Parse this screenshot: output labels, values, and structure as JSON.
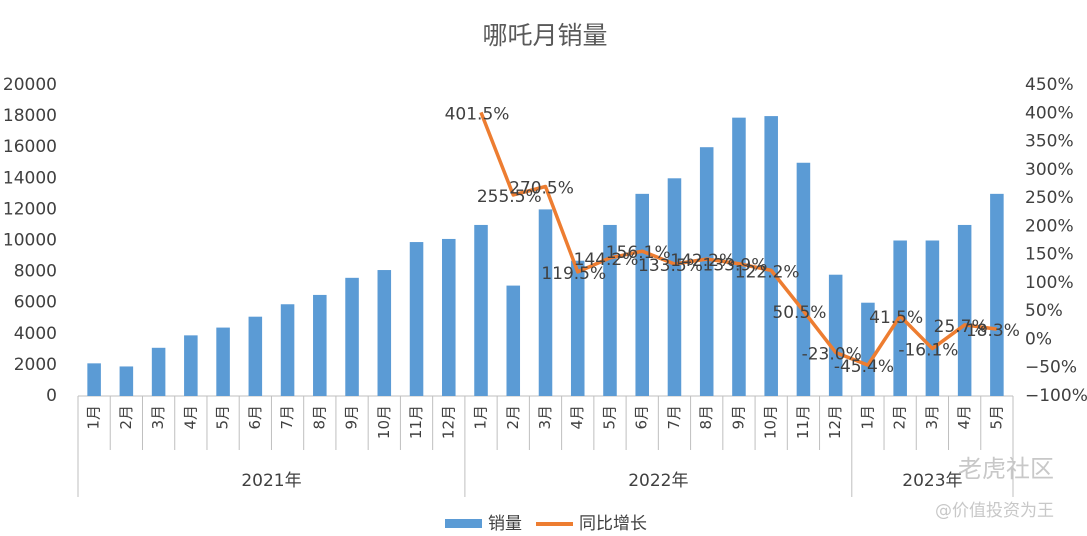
{
  "chart_data": {
    "type": "bar-line",
    "title": "哪吒月销量",
    "groups": [
      {
        "label": "2021年",
        "categories": [
          "1月",
          "2月",
          "3月",
          "4月",
          "5月",
          "6月",
          "7月",
          "8月",
          "9月",
          "10月",
          "11月",
          "12月"
        ]
      },
      {
        "label": "2022年",
        "categories": [
          "1月",
          "2月",
          "3月",
          "4月",
          "5月",
          "6月",
          "7月",
          "8月",
          "9月",
          "10月",
          "11月",
          "12月"
        ]
      },
      {
        "label": "2023年",
        "categories": [
          "1月",
          "2月",
          "3月",
          "4月",
          "5月"
        ]
      }
    ],
    "series": [
      {
        "name": "销量",
        "type": "bar",
        "color": "#5b9bd5",
        "values": [
          2100,
          1900,
          3100,
          3900,
          4400,
          5100,
          5900,
          6500,
          7600,
          8100,
          9900,
          10100,
          11000,
          7100,
          12000,
          8700,
          11000,
          13000,
          14000,
          16000,
          17900,
          18000,
          15000,
          7800,
          6000,
          10000,
          10000,
          11000,
          13000
        ]
      },
      {
        "name": "同比增长",
        "type": "line",
        "axis": "y2",
        "color": "#ed7d31",
        "values": [
          null,
          null,
          null,
          null,
          null,
          null,
          null,
          null,
          null,
          null,
          null,
          null,
          401.5,
          255.5,
          270.5,
          119.5,
          144.2,
          156.1,
          133.5,
          142.2,
          133.9,
          122.2,
          50.5,
          -23.0,
          -45.4,
          41.5,
          -16.1,
          25.7,
          18.3
        ],
        "value_labels": [
          null,
          null,
          null,
          null,
          null,
          null,
          null,
          null,
          null,
          null,
          null,
          null,
          "401.5%",
          "255.5%",
          "270.5%",
          "119.5%",
          "144.2%",
          "156.1%",
          "133.5%",
          "142.2%",
          "133.9%",
          "122.2%",
          "50.5%",
          "-23.0%",
          "-45.4%",
          "41.5%",
          "-16.1%",
          "25.7%",
          "18.3%"
        ]
      }
    ],
    "ylim": [
      0,
      20000
    ],
    "yticks": [
      0,
      2000,
      4000,
      6000,
      8000,
      10000,
      12000,
      14000,
      16000,
      18000,
      20000
    ],
    "y2lim": [
      -100,
      450
    ],
    "y2ticks": [
      {
        "value": -100,
        "label": "−100%"
      },
      {
        "value": -50,
        "label": "−50%"
      },
      {
        "value": 0,
        "label": "0%"
      },
      {
        "value": 50,
        "label": "50%"
      },
      {
        "value": 100,
        "label": "100%"
      },
      {
        "value": 150,
        "label": "150%"
      },
      {
        "value": 200,
        "label": "200%"
      },
      {
        "value": 250,
        "label": "250%"
      },
      {
        "value": 300,
        "label": "300%"
      },
      {
        "value": 350,
        "label": "350%"
      },
      {
        "value": 400,
        "label": "400%"
      },
      {
        "value": 450,
        "label": "450%"
      }
    ],
    "grid": false,
    "legend": "bottom",
    "watermark": [
      "老虎社区",
      "@价值投资为王"
    ]
  }
}
